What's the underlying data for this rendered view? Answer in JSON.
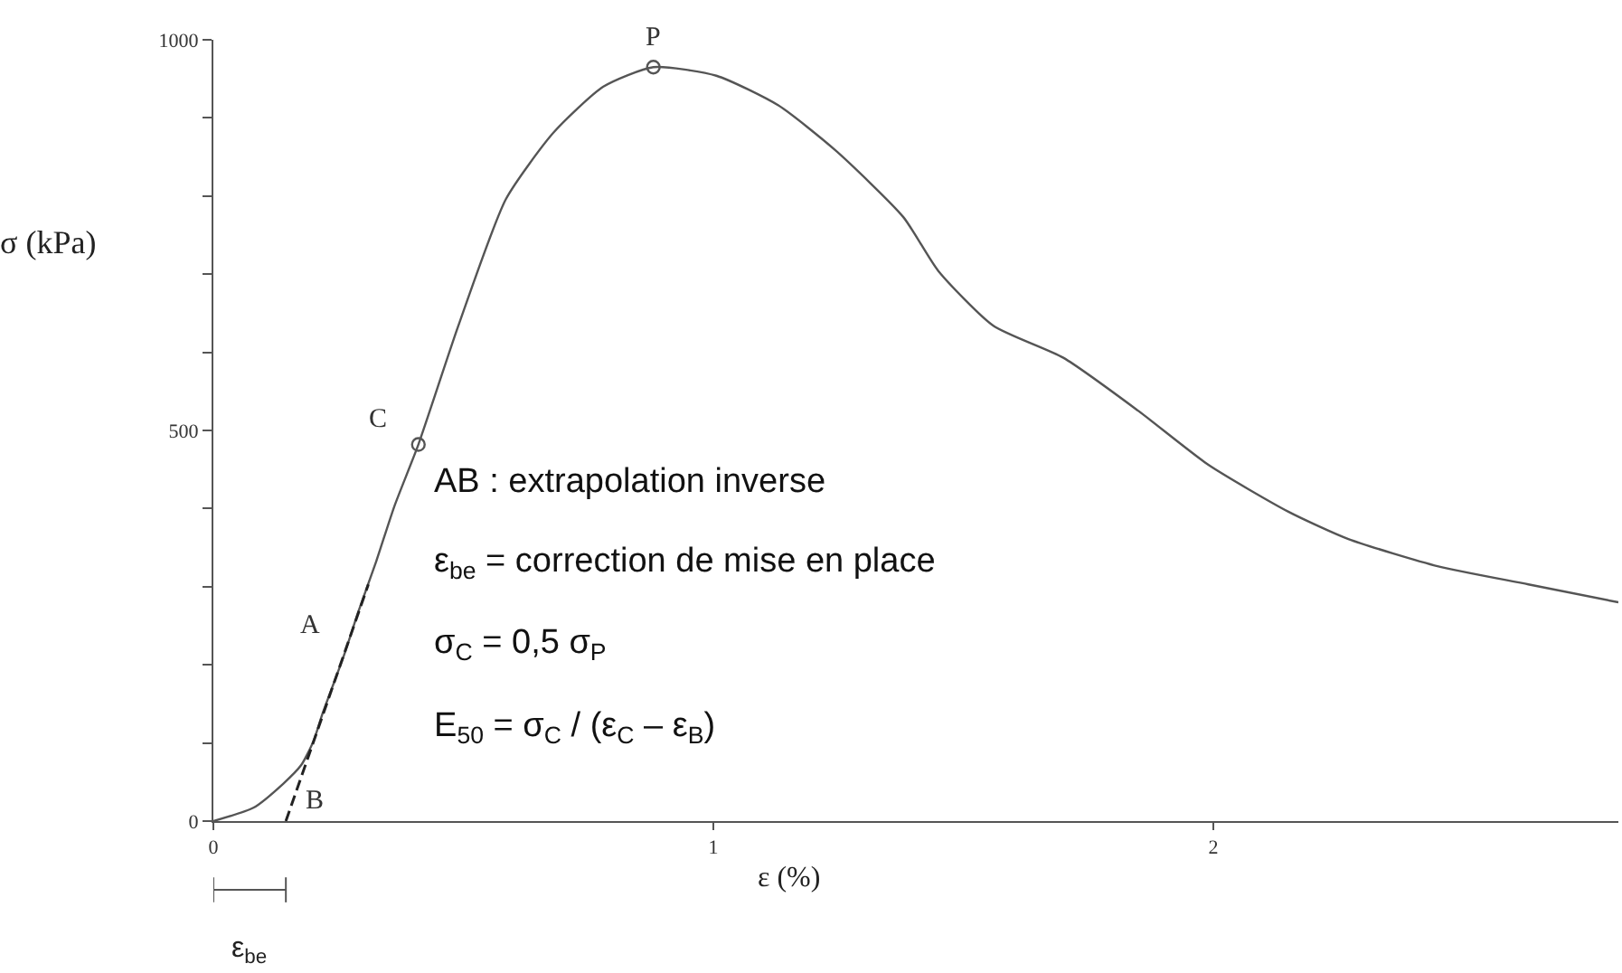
{
  "chart_data": {
    "type": "line",
    "xlabel": "ε (%)",
    "ylabel": "σ (kPa)",
    "series": [
      {
        "color": "#555555",
        "marker": "none",
        "line_style": "solid",
        "x": [
          0,
          0.08,
          0.14,
          0.176,
          0.2,
          0.218,
          0.26,
          0.29,
          0.326,
          0.362,
          0.41,
          0.49,
          0.585,
          0.68,
          0.78,
          0.88,
          1.006,
          1.13,
          1.245,
          1.38,
          1.45,
          1.56,
          1.7,
          1.85,
          1.99,
          2.15,
          2.27,
          2.45,
          2.63,
          2.81
        ],
        "values": [
          0,
          17,
          48,
          72,
          102,
          137,
          210,
          268,
          333,
          403,
          482,
          634,
          796,
          881,
          940,
          965,
          954,
          916,
          858,
          773,
          704,
          634,
          593,
          525,
          456,
          396,
          361,
          326,
          303,
          280
        ]
      },
      {
        "color": "#222222",
        "marker": "none",
        "line_style": "dashed",
        "x": [
          0.145,
          0.31
        ],
        "values": [
          0,
          303
        ]
      },
      {
        "type": "scatter",
        "color": "#555555",
        "marker": "circle",
        "x": [
          0.41,
          0.88
        ],
        "values": [
          482,
          965
        ]
      }
    ],
    "xlim": [
      0,
      2.81
    ],
    "xticks": [
      0,
      1,
      2
    ],
    "ylim": [
      0,
      1000
    ],
    "yticks": [
      0,
      {
        "value": 100,
        "label": null
      },
      {
        "value": 200,
        "label": null
      },
      {
        "value": 300,
        "label": null
      },
      {
        "value": 400,
        "label": null
      },
      500,
      {
        "value": 600,
        "label": null
      },
      {
        "value": 700,
        "label": null
      },
      {
        "value": 800,
        "label": null
      },
      {
        "value": 900,
        "label": null
      },
      1000
    ],
    "annotations": [
      {
        "text": "P",
        "x": 0.88,
        "y": 965
      },
      {
        "text": "C",
        "x": 0.41,
        "y": 482
      },
      {
        "text": "A",
        "x": 0.26,
        "y": 235
      },
      {
        "text": "B",
        "x": 0.16,
        "y": 40
      },
      "AB : extrapolation inverse",
      "ε$_{be}$ = correction de mise en place",
      "σ$_{C}$ = 0,5 σ$_{P}$",
      "E$_{50}$ = σ$_{C}$ / (ε$_{C}$ – ε$_{B}$)",
      "ε$_{be}$"
    ]
  }
}
